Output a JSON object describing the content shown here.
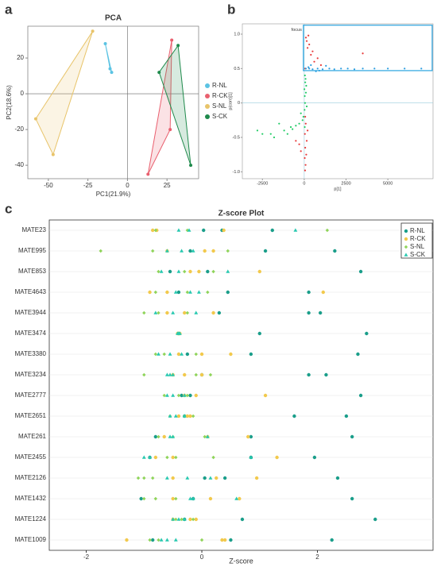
{
  "chart_data": [
    {
      "type": "scatter",
      "panel_label": "a",
      "title": "PCA",
      "xlabel": "PC1(21.9%)",
      "ylabel": "PC2(18.6%)",
      "xlim": [
        -63,
        45
      ],
      "ylim": [
        -47.5,
        37.8
      ],
      "xticks": [
        -50,
        -25,
        0,
        25
      ],
      "yticks": [
        -40,
        -20,
        0,
        20
      ],
      "zero_lines": true,
      "hull": true,
      "legend": "right",
      "series": [
        {
          "name": "R-NL",
          "color": "#5bc3e3",
          "x": [
            -14,
            -11,
            -10
          ],
          "values": [
            28,
            14,
            12
          ]
        },
        {
          "name": "R-CK",
          "color": "#e9606f",
          "x": [
            13,
            27,
            28
          ],
          "values": [
            -45,
            -20,
            30
          ]
        },
        {
          "name": "S-NL",
          "color": "#e8c46a",
          "x": [
            -58,
            -22,
            -47
          ],
          "values": [
            -14,
            35,
            -34
          ]
        },
        {
          "name": "S-CK",
          "color": "#1f8a4c",
          "x": [
            20,
            32,
            40
          ],
          "values": [
            12,
            27,
            -40
          ]
        }
      ]
    },
    {
      "type": "splot",
      "panel_label": "b",
      "xlabel": "p[1]",
      "ylabel": "p(corr)[1]",
      "xlim": [
        -3700,
        7700
      ],
      "ylim": [
        -1.1,
        1.15
      ],
      "xticks": [
        -2500,
        0,
        2500,
        5000
      ],
      "yticks": [
        {
          "value": -1,
          "label": "-1.0"
        },
        -0.5,
        0,
        0.5,
        {
          "value": 1,
          "label": "1.0"
        }
      ],
      "zero_lines": true,
      "annotation": "focus",
      "focus_box": {
        "x": [
          -50,
          7650
        ],
        "y": [
          0.47,
          1.13
        ],
        "color": "#29a3e0"
      },
      "series": [
        {
          "color": "#e83a3a",
          "x": [
            50,
            80,
            30,
            120,
            60,
            150,
            40,
            200,
            90,
            60,
            -300,
            -500,
            -200,
            100,
            150,
            300,
            200,
            500,
            400,
            800,
            600,
            1000,
            50,
            3500,
            250
          ],
          "values": [
            -0.98,
            -0.9,
            -0.8,
            -0.75,
            -0.65,
            -0.55,
            -0.45,
            -0.4,
            -0.3,
            -0.2,
            -0.6,
            -0.55,
            -0.7,
            0.95,
            0.9,
            0.85,
            0.8,
            0.75,
            0.7,
            0.65,
            0.6,
            0.55,
            0.5,
            0.72,
            0.98
          ]
        },
        {
          "color": "#22cc66",
          "x": [
            20,
            50,
            30,
            10,
            60,
            40,
            -50,
            -100,
            -300,
            -500,
            -800,
            -1200,
            -1500,
            -2000,
            -2500,
            -2800,
            -1800,
            -1000,
            100,
            150,
            80,
            -200,
            -700,
            30,
            120
          ],
          "values": [
            -0.1,
            0,
            0.1,
            0.2,
            0.3,
            0.4,
            -0.2,
            -0.25,
            -0.3,
            -0.33,
            -0.35,
            -0.4,
            -0.3,
            -0.45,
            -0.45,
            -0.4,
            -0.5,
            -0.45,
            0.15,
            -0.05,
            0.35,
            -0.15,
            -0.38,
            -0.35,
            0.25
          ]
        },
        {
          "color": "#2a9de0",
          "x": [
            100,
            300,
            500,
            800,
            1100,
            1500,
            1800,
            2200,
            2600,
            3000,
            3500,
            4200,
            5000,
            6000,
            7000,
            400,
            700,
            1300,
            250,
            900
          ],
          "values": [
            0.5,
            0.5,
            0.49,
            0.5,
            0.49,
            0.5,
            0.49,
            0.5,
            0.5,
            0.49,
            0.5,
            0.5,
            0.5,
            0.5,
            0.5,
            0.55,
            0.46,
            0.54,
            0.52,
            0.47
          ]
        }
      ]
    },
    {
      "type": "dot",
      "panel_label": "c",
      "title": "Z-score Plot",
      "xlabel": "Z-score",
      "xlim": [
        -2.64,
        4.0
      ],
      "xticks": [
        -2,
        0,
        2
      ],
      "legend": "upper right",
      "categories": [
        "MATE23",
        "MATE995",
        "MATE853",
        "MATE4643",
        "MATE3944",
        "MATE3474",
        "MATE3380",
        "MATE3234",
        "MATE2777",
        "MATE2651",
        "MATE261",
        "MATE2455",
        "MATE2126",
        "MATE1432",
        "MATE1224",
        "MATE1009"
      ],
      "series": [
        {
          "name": "R-NL",
          "color": "#1a9e8a",
          "marker": "circle",
          "values": [
            [
              0.03,
              0.35,
              1.22
            ],
            [
              -0.2,
              1.1,
              2.3
            ],
            [
              -0.55,
              0.1,
              2.75
            ],
            [
              -0.4,
              0.45,
              1.85
            ],
            [
              0.3,
              1.85,
              2.05
            ],
            [
              -0.4,
              1.0,
              2.85
            ],
            [
              -0.25,
              0.85,
              2.7
            ],
            [
              0.0,
              1.85,
              2.15
            ],
            [
              -0.35,
              -0.2,
              2.75
            ],
            [
              -0.3,
              1.6,
              2.5
            ],
            [
              -0.8,
              0.85,
              2.6
            ],
            [
              -0.9,
              0.85,
              1.95
            ],
            [
              0.05,
              0.4,
              2.35
            ],
            [
              -1.05,
              -0.15,
              2.6
            ],
            [
              -0.3,
              0.7,
              3.0
            ],
            [
              -0.85,
              0.5,
              2.25
            ]
          ]
        },
        {
          "name": "R-CK",
          "color": "#f2c94c",
          "marker": "circle",
          "values": [
            [
              -0.85,
              -0.78,
              0.38
            ],
            [
              -0.6,
              0.05,
              0.2
            ],
            [
              -0.2,
              -0.05,
              1.0
            ],
            [
              -0.9,
              -0.6,
              2.1
            ],
            [
              -0.6,
              -0.3,
              0.2
            ],
            [
              -0.42,
              -0.4,
              -0.38
            ],
            [
              -0.4,
              0.0,
              0.5
            ],
            [
              -0.5,
              -0.3,
              0.0
            ],
            [
              -0.3,
              -0.1,
              1.1
            ],
            [
              -0.4,
              -0.25,
              -0.2
            ],
            [
              -0.65,
              0.1,
              0.8
            ],
            [
              -0.8,
              -0.5,
              1.3
            ],
            [
              -0.5,
              0.25,
              0.95
            ],
            [
              -0.5,
              0.15,
              0.65
            ],
            [
              -0.5,
              -0.2,
              -0.1
            ],
            [
              -1.3,
              0.35,
              0.4
            ]
          ]
        },
        {
          "name": "S-NL",
          "color": "#8fd45a",
          "marker": "diamond",
          "values": [
            [
              -0.8,
              -0.25,
              2.17
            ],
            [
              -1.75,
              -0.85,
              0.45
            ],
            [
              -0.75,
              -0.3,
              0.2
            ],
            [
              -0.8,
              -0.25,
              0.1
            ],
            [
              -1.0,
              -0.75,
              -0.25
            ],
            [
              -0.41,
              -0.39,
              -0.4
            ],
            [
              -0.8,
              -0.65,
              -0.1
            ],
            [
              -1.0,
              -0.1,
              0.15
            ],
            [
              -0.65,
              -0.4,
              -0.25
            ],
            [
              -0.55,
              -0.3,
              -0.15
            ],
            [
              -0.75,
              -0.5,
              0.05
            ],
            [
              -0.6,
              -0.45,
              0.2
            ],
            [
              -1.1,
              -1.0,
              -0.85
            ],
            [
              -1.0,
              -0.8,
              -0.45
            ],
            [
              -0.45,
              -0.35,
              -0.15
            ],
            [
              -0.9,
              -0.75,
              0.0
            ]
          ]
        },
        {
          "name": "S-CK",
          "color": "#27c9b0",
          "marker": "triangle",
          "values": [
            [
              -0.4,
              -0.22,
              1.62
            ],
            [
              -0.6,
              -0.35,
              -0.15
            ],
            [
              -0.7,
              -0.4,
              0.45
            ],
            [
              -0.45,
              -0.2,
              -0.05
            ],
            [
              -0.8,
              -0.5,
              -0.1
            ],
            [
              -0.42,
              -0.38,
              -0.4
            ],
            [
              -0.75,
              -0.35,
              -0.55
            ],
            [
              -0.6,
              -0.55,
              -0.5
            ],
            [
              -0.6,
              -0.5,
              -0.3
            ],
            [
              -0.55,
              -0.45,
              -0.3
            ],
            [
              -0.55,
              -0.5,
              0.1
            ],
            [
              -1.0,
              -0.9,
              0.85
            ],
            [
              -0.6,
              -0.25,
              0.15
            ],
            [
              -0.2,
              -0.15,
              0.6
            ],
            [
              -0.5,
              -0.4,
              -0.3
            ],
            [
              -0.7,
              -0.6,
              -0.45
            ]
          ]
        }
      ]
    }
  ]
}
